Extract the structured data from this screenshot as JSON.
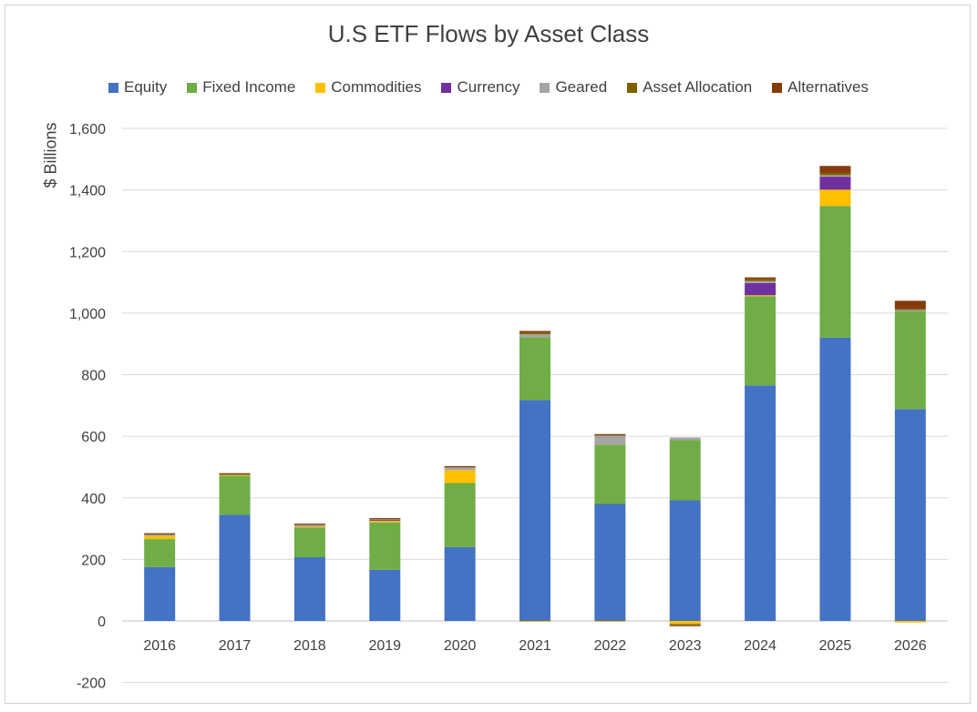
{
  "chart_data": {
    "type": "bar",
    "stacked": true,
    "title": "U.S ETF Flows by Asset Class",
    "ylabel": "$ Billions",
    "xlabel": "",
    "ylim": [
      -200,
      1600
    ],
    "yticks": [
      -200,
      0,
      200,
      400,
      600,
      800,
      1000,
      1200,
      1400,
      1600
    ],
    "ytick_labels": [
      "-200",
      "0",
      "200",
      "400",
      "600",
      "800",
      "1,000",
      "1,200",
      "1,400",
      "1,600"
    ],
    "grid": true,
    "legend_position": "top",
    "categories": [
      "2016",
      "2017",
      "2018",
      "2019",
      "2020",
      "2021",
      "2022",
      "2023",
      "2024",
      "2025",
      "2026"
    ],
    "series": [
      {
        "name": "Equity",
        "color": "#4472C4",
        "values": [
          175,
          345,
          207,
          166,
          240,
          718,
          380,
          392,
          765,
          920,
          688
        ]
      },
      {
        "name": "Fixed Income",
        "color": "#70AD47",
        "values": [
          91,
          127,
          97,
          154,
          208,
          203,
          193,
          196,
          290,
          428,
          318
        ]
      },
      {
        "name": "Commodities",
        "color": "#FFC000",
        "values": [
          10,
          2,
          2,
          7,
          42,
          -2,
          -2,
          -10,
          3,
          53,
          -5
        ]
      },
      {
        "name": "Currency",
        "color": "#7030A0",
        "values": [
          0,
          0,
          0,
          1,
          0,
          0,
          0,
          0,
          40,
          42,
          0
        ]
      },
      {
        "name": "Geared",
        "color": "#A5A5A5",
        "values": [
          4,
          2,
          7,
          3,
          10,
          10,
          30,
          8,
          6,
          5,
          4
        ]
      },
      {
        "name": "Asset Allocation",
        "color": "#7F6000",
        "values": [
          3,
          2,
          2,
          2,
          2,
          6,
          2,
          -4,
          6,
          6,
          4
        ]
      },
      {
        "name": "Alternatives",
        "color": "#843C0C",
        "values": [
          2,
          2,
          1,
          1,
          1,
          5,
          2,
          -2,
          6,
          24,
          26
        ]
      }
    ]
  }
}
